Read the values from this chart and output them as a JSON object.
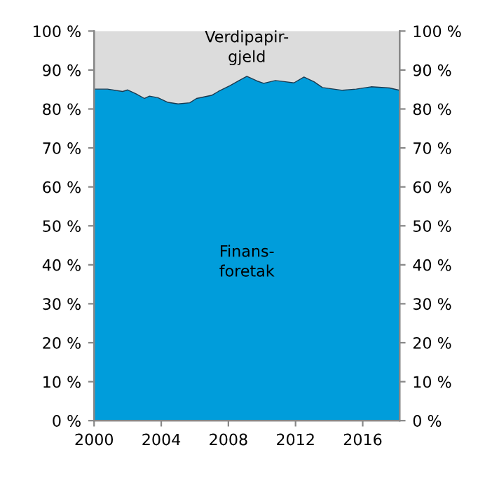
{
  "chart_data": {
    "type": "area",
    "stacked": true,
    "x": [
      2000,
      2000.8,
      2001.7,
      2002.0,
      2002.5,
      2003.0,
      2003.3,
      2003.8,
      2004.4,
      2005.0,
      2005.7,
      2006.1,
      2007.0,
      2007.4,
      2008.1,
      2008.6,
      2009.1,
      2009.7,
      2010.1,
      2010.8,
      2011.4,
      2011.9,
      2012.5,
      2013.1,
      2013.6,
      2014.8,
      2015.6,
      2016.5,
      2017.6,
      2018.2
    ],
    "series": [
      {
        "name": "Finans-\nforetak",
        "color": "#009ddb",
        "values": [
          85.1,
          85.1,
          84.5,
          84.9,
          83.9,
          82.7,
          83.3,
          82.9,
          81.7,
          81.3,
          81.6,
          82.7,
          83.5,
          84.5,
          86,
          87.2,
          88.4,
          87.2,
          86.6,
          87.3,
          87,
          86.7,
          88.2,
          87,
          85.5,
          84.8,
          85.1,
          85.7,
          85.4,
          84.8
        ]
      },
      {
        "name": "Verdipapir-\ngjeld",
        "color": "#dcdcdc",
        "values": [
          14.9,
          14.9,
          15.5,
          15.1,
          16.1,
          17.3,
          16.7,
          17.1,
          18.3,
          18.7,
          18.4,
          17.3,
          16.5,
          15.5,
          14,
          12.8,
          11.6,
          12.8,
          13.4,
          12.7,
          13,
          13.3,
          11.8,
          13,
          14.5,
          15.2,
          14.9,
          14.3,
          14.6,
          15.2
        ]
      }
    ],
    "xlim": [
      2000,
      2018.2
    ],
    "xticks": [
      2000,
      2004,
      2008,
      2012,
      2016
    ],
    "ylim": [
      0,
      100
    ],
    "yticks": [
      {
        "value": 0,
        "label": "0 %"
      },
      {
        "value": 10,
        "label": "10 %"
      },
      {
        "value": 20,
        "label": "20 %"
      },
      {
        "value": 30,
        "label": "30 %"
      },
      {
        "value": 40,
        "label": "40 %"
      },
      {
        "value": 50,
        "label": "50 %"
      },
      {
        "value": 60,
        "label": "60 %"
      },
      {
        "value": 70,
        "label": "70 %"
      },
      {
        "value": 80,
        "label": "80 %"
      },
      {
        "value": 90,
        "label": "90 %"
      },
      {
        "value": 100,
        "label": "100 %"
      }
    ],
    "y2lim": [
      0,
      100
    ],
    "y2ticks": [
      {
        "value": 0,
        "label": "0 %"
      },
      {
        "value": 10,
        "label": "10 %"
      },
      {
        "value": 20,
        "label": "20 %"
      },
      {
        "value": 30,
        "label": "30 %"
      },
      {
        "value": 40,
        "label": "40 %"
      },
      {
        "value": 50,
        "label": "50 %"
      },
      {
        "value": 60,
        "label": "60 %"
      },
      {
        "value": 70,
        "label": "70 %"
      },
      {
        "value": 80,
        "label": "80 %"
      },
      {
        "value": 90,
        "label": "90 %"
      },
      {
        "value": 100,
        "label": "100 %"
      }
    ],
    "grid": false,
    "legend": false
  }
}
